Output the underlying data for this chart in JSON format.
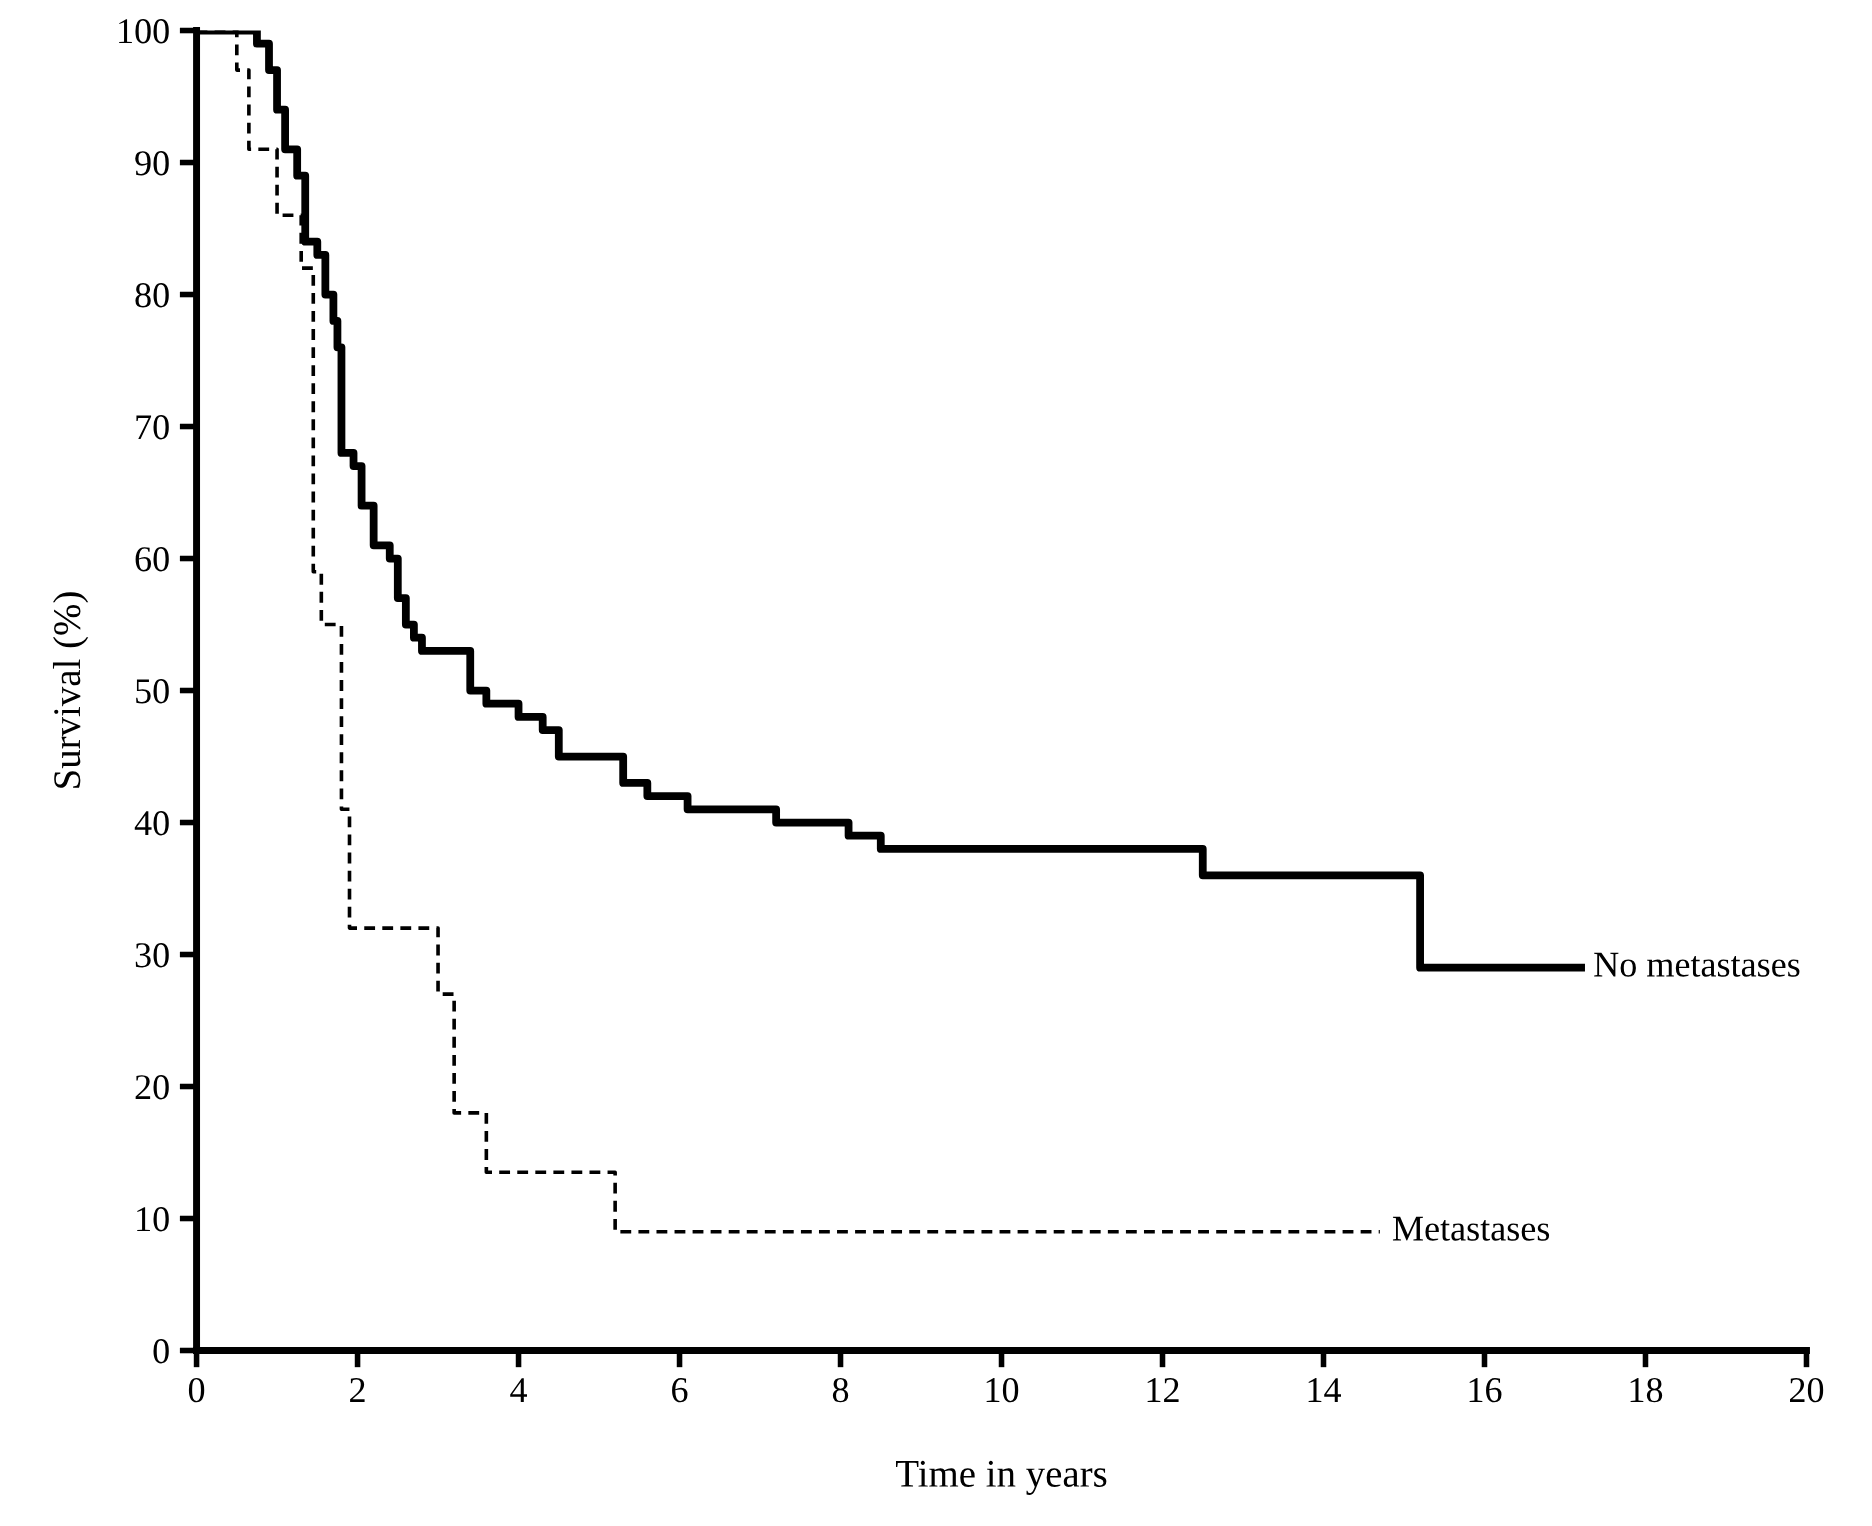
{
  "chart_data": {
    "type": "step",
    "xlabel": "Time in years",
    "ylabel": "Survival (%)",
    "xlim": [
      0,
      20
    ],
    "ylim": [
      0,
      100
    ],
    "xticks": [
      0,
      2,
      4,
      6,
      8,
      10,
      12,
      14,
      16,
      18,
      20
    ],
    "yticks": [
      0,
      10,
      20,
      30,
      40,
      50,
      60,
      70,
      80,
      90,
      100
    ],
    "grid": false,
    "legend": false,
    "marker": "none",
    "series": [
      {
        "name": "No metastases",
        "color": "#000000",
        "line_style": "solid",
        "x": [
          0,
          0.75,
          0.9,
          1.0,
          1.1,
          1.25,
          1.35,
          1.5,
          1.6,
          1.7,
          1.75,
          1.8,
          1.95,
          2.05,
          2.2,
          2.4,
          2.5,
          2.6,
          2.7,
          2.8,
          3.4,
          3.6,
          4.0,
          4.3,
          4.5,
          5.3,
          5.6,
          6.1,
          7.2,
          8.1,
          8.5,
          12.5,
          15.2,
          17.2
        ],
        "values": [
          100,
          99,
          97,
          94,
          91,
          89,
          84,
          83,
          80,
          78,
          76,
          68,
          67,
          64,
          61,
          60,
          57,
          55,
          54,
          53,
          50,
          49,
          48,
          47,
          45,
          43,
          42,
          41,
          40,
          39,
          38,
          36,
          29,
          29
        ]
      },
      {
        "name": "Metastases",
        "color": "#000000",
        "line_style": "dashed",
        "x": [
          0,
          0.5,
          0.65,
          1.0,
          1.3,
          1.45,
          1.55,
          1.8,
          1.9,
          3.0,
          3.2,
          3.6,
          5.2,
          14.7
        ],
        "values": [
          100,
          97,
          91,
          86,
          82,
          59,
          55,
          41,
          32,
          27,
          18,
          13.5,
          9,
          9
        ]
      }
    ]
  }
}
